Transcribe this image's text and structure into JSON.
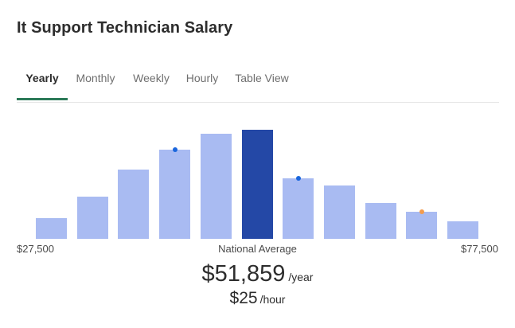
{
  "title": "It Support Technician Salary",
  "tabs": [
    {
      "label": "Yearly",
      "active": true
    },
    {
      "label": "Monthly",
      "active": false
    },
    {
      "label": "Weekly",
      "active": false
    },
    {
      "label": "Hourly",
      "active": false
    },
    {
      "label": "Table View",
      "active": false
    }
  ],
  "colors": {
    "bar": "#a9bbf2",
    "bar_highlight": "#2448a6",
    "dot_blue": "#1a66dd",
    "dot_orange": "#f39c4f",
    "tab_underline": "#2c7a58"
  },
  "chart_data": {
    "type": "bar",
    "values": [
      20,
      40,
      66,
      85,
      100,
      104,
      58,
      51,
      34,
      26,
      17
    ],
    "highlight_index": 5,
    "markers": [
      {
        "bar": 3,
        "color": "blue"
      },
      {
        "bar": 6,
        "color": "blue"
      },
      {
        "bar": 9,
        "color": "orange"
      }
    ],
    "x_min_label": "$27,500",
    "x_mid_label": "National Average",
    "x_max_label": "$77,500"
  },
  "salary": {
    "yearly_amount": "$51,859",
    "yearly_unit": "/year",
    "hourly_amount": "$25",
    "hourly_unit": "/hour"
  }
}
